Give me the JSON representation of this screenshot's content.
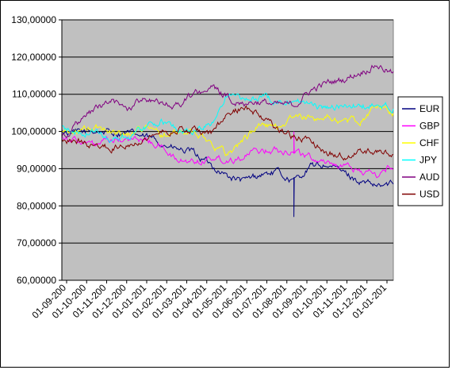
{
  "chart_data": {
    "type": "line",
    "title": "",
    "xlabel": "",
    "ylabel": "",
    "ylim": [
      60,
      130
    ],
    "y_ticks": [
      "130,00000",
      "120,00000",
      "110,00000",
      "100,00000",
      "90,00000",
      "80,00000",
      "70,00000",
      "60,00000"
    ],
    "x_tick_labels": [
      "01-09-200",
      "01-10-200",
      "01-11-200",
      "01-12-200",
      "01-01-201",
      "01-02-201",
      "01-03-201",
      "01-04-201",
      "01-05-201",
      "01-06-201",
      "01-07-201",
      "01-08-201",
      "01-09-201",
      "01-10-201",
      "01-11-201",
      "01-12-201",
      "01-01-201"
    ],
    "grid": "horizontal",
    "plot_background": "#c0c0c0",
    "legend_position": "right",
    "series": [
      {
        "name": "EUR",
        "color": "#000080",
        "values": [
          100.0,
          99.5,
          100.2,
          99.8,
          99.5,
          98.5,
          97.0,
          95.0,
          94.0,
          91.0,
          88.0,
          86.5,
          88.5,
          89.0,
          86.5,
          90.5,
          91.0,
          89.0,
          86.5,
          85.0,
          86.0
        ],
        "spike": {
          "index": 14,
          "value": 77
        }
      },
      {
        "name": "GBP",
        "color": "#ff00ff",
        "values": [
          99.0,
          97.5,
          96.0,
          97.5,
          97.5,
          98.0,
          96.0,
          92.0,
          92.0,
          93.0,
          92.5,
          93.5,
          95.0,
          95.0,
          95.0,
          93.0,
          92.0,
          90.5,
          89.5,
          88.0,
          91.0
        ],
        "spike": {
          "index": 14,
          "value": 100
        }
      },
      {
        "name": "CHF",
        "color": "#ffff00",
        "values": [
          100.0,
          100.0,
          101.0,
          100.0,
          99.5,
          101.5,
          99.0,
          99.5,
          100.0,
          97.0,
          94.0,
          98.0,
          102.0,
          101.0,
          104.0,
          103.5,
          104.0,
          102.5,
          103.0,
          107.0,
          105.0
        ]
      },
      {
        "name": "JPY",
        "color": "#00ffff",
        "values": [
          101.0,
          99.5,
          100.0,
          98.0,
          99.0,
          101.0,
          103.0,
          100.5,
          100.0,
          102.0,
          110.0,
          108.0,
          109.5,
          108.0,
          109.0,
          107.0,
          106.5,
          106.5,
          107.0,
          106.5,
          106.5
        ]
      },
      {
        "name": "AUD",
        "color": "#800080",
        "values": [
          99.0,
          102.0,
          106.0,
          108.0,
          106.0,
          109.5,
          107.0,
          107.0,
          110.0,
          112.0,
          109.0,
          108.0,
          108.0,
          107.0,
          107.0,
          111.0,
          113.0,
          114.0,
          116.0,
          118.0,
          115.5
        ]
      },
      {
        "name": "USD",
        "color": "#800000",
        "values": [
          98.0,
          97.5,
          96.0,
          95.5,
          97.0,
          98.5,
          100.0,
          100.5,
          100.0,
          99.5,
          104.0,
          107.0,
          104.0,
          101.0,
          98.5,
          97.5,
          94.5,
          93.0,
          95.0,
          94.5,
          94.0
        ]
      }
    ]
  }
}
